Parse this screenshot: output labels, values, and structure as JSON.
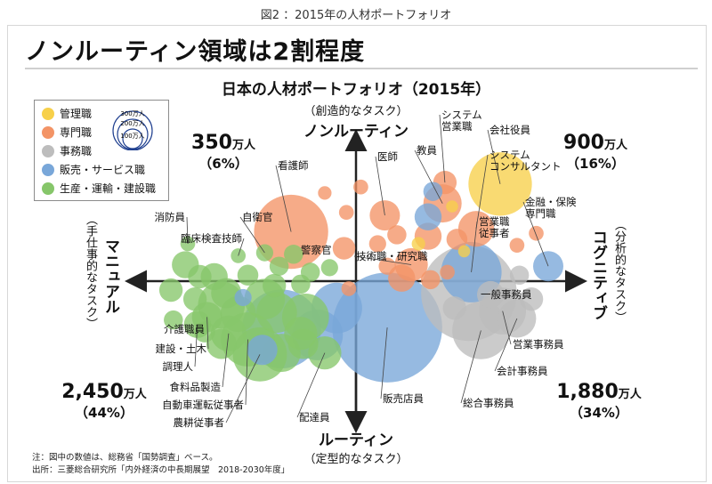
{
  "caption": "図2 ：2015年の人材ポートフォリオ",
  "headline": "ノンルーティン領域は2割程度",
  "subtitle": "日本の人材ポートフォリオ（2015年）",
  "legend": {
    "items": [
      {
        "label": "管理職",
        "color": "#f7d04a"
      },
      {
        "label": "専門職",
        "color": "#f39466"
      },
      {
        "label": "事務職",
        "color": "#bdbdbd"
      },
      {
        "label": "販売・サービス職",
        "color": "#79a7d9"
      },
      {
        "label": "生産・運輸・建設職",
        "color": "#86c66a"
      }
    ],
    "size_keys": [
      "300万人",
      "200万人",
      "100万人"
    ]
  },
  "axes": {
    "top_sub": "（創造的なタスク）",
    "top_main": "ノンルーティン",
    "bottom_main": "ルーティン",
    "bottom_sub": "（定型的なタスク）",
    "left_main": "マニュアル",
    "left_sub": "（手仕事的なタスク）",
    "right_main": "コグニティブ",
    "right_sub": "（分析的なタスク）"
  },
  "quadrants": {
    "top_left": {
      "value": "350",
      "unit": "万人",
      "pct": "（6%）"
    },
    "top_right": {
      "value": "900",
      "unit": "万人",
      "pct": "（16%）"
    },
    "bottom_left": {
      "value": "2,450",
      "unit": "万人",
      "pct": "（44%）"
    },
    "bottom_right": {
      "value": "1,880",
      "unit": "万人",
      "pct": "（34%）"
    }
  },
  "notes": {
    "line1": "注：図中の数値は、総務省「国勢調査」ベース。",
    "line2": "出所：三菱総合研究所「内外経済の中長期展望　2018-2030年度」"
  },
  "chart_data": {
    "type": "scatter",
    "title": "日本の人材ポートフォリオ（2015年）",
    "xlabel": "マニュアル ← → コグニティブ",
    "ylabel": "ルーティン ← → ノンルーティン",
    "xlim": [
      -10,
      10
    ],
    "ylim": [
      -10,
      10
    ],
    "size_unit": "万人",
    "categories": [
      "管理職",
      "専門職",
      "事務職",
      "販売・サービス職",
      "生産・運輸・建設職"
    ],
    "points": [
      {
        "label": "会社役員",
        "category": "管理職",
        "x": 6.0,
        "y": 6.5,
        "size": 110
      },
      {
        "label": "",
        "category": "管理職",
        "x": 2.6,
        "y": 2.5,
        "size": 5
      },
      {
        "label": "",
        "category": "管理職",
        "x": 4.5,
        "y": 2.0,
        "size": 4
      },
      {
        "label": "",
        "category": "管理職",
        "x": 4.0,
        "y": 5.0,
        "size": 4
      },
      {
        "label": "システム営業職",
        "category": "専門職",
        "x": 3.7,
        "y": 6.6,
        "size": 15
      },
      {
        "label": "教員",
        "category": "専門職",
        "x": 3.6,
        "y": 5.2,
        "size": 40
      },
      {
        "label": "医師",
        "category": "専門職",
        "x": 1.2,
        "y": 4.4,
        "size": 25
      },
      {
        "label": "システムコンサルタント",
        "category": "専門職",
        "x": 5.0,
        "y": 3.5,
        "size": 35
      },
      {
        "label": "看護師",
        "category": "専門職",
        "x": -2.7,
        "y": 3.3,
        "size": 150
      },
      {
        "label": "技術職・研究職",
        "category": "専門職",
        "x": 2.3,
        "y": 1.1,
        "size": 30
      },
      {
        "label": "",
        "category": "専門職",
        "x": 0.2,
        "y": 6.3,
        "size": 6
      },
      {
        "label": "",
        "category": "専門職",
        "x": -1.3,
        "y": 5.9,
        "size": 5
      },
      {
        "label": "",
        "category": "専門職",
        "x": -0.4,
        "y": 4.6,
        "size": 6
      },
      {
        "label": "",
        "category": "専門職",
        "x": -0.5,
        "y": 2.2,
        "size": 14
      },
      {
        "label": "",
        "category": "専門職",
        "x": 0.9,
        "y": 2.5,
        "size": 8
      },
      {
        "label": "",
        "category": "専門職",
        "x": 1.7,
        "y": 3.1,
        "size": 10
      },
      {
        "label": "",
        "category": "専門職",
        "x": 3.0,
        "y": 3.0,
        "size": 20
      },
      {
        "label": "",
        "category": "専門職",
        "x": 4.2,
        "y": 2.8,
        "size": 12
      },
      {
        "label": "",
        "category": "専門職",
        "x": 1.9,
        "y": 0.2,
        "size": 20
      },
      {
        "label": "",
        "category": "専門職",
        "x": 3.1,
        "y": 0.1,
        "size": 10
      },
      {
        "label": "",
        "category": "専門職",
        "x": 6.7,
        "y": 2.4,
        "size": 6
      },
      {
        "label": "",
        "category": "専門職",
        "x": 7.5,
        "y": 3.2,
        "size": 6
      },
      {
        "label": "",
        "category": "専門職",
        "x": 3.8,
        "y": 0.6,
        "size": 6
      },
      {
        "label": "",
        "category": "専門職",
        "x": 1.3,
        "y": 1.0,
        "size": 8
      },
      {
        "label": "",
        "category": "専門職",
        "x": -0.3,
        "y": -0.5,
        "size": 6
      },
      {
        "label": "営業職従事者",
        "category": "販売・サービス職",
        "x": 4.8,
        "y": 0.6,
        "size": 100
      },
      {
        "label": "金融・保険専門職",
        "category": "販売・サービス職",
        "x": 8.0,
        "y": 1.0,
        "size": 25
      },
      {
        "label": "",
        "category": "販売・サービス職",
        "x": 3.2,
        "y": 6.0,
        "size": 10
      },
      {
        "label": "",
        "category": "販売・サービス職",
        "x": 3.0,
        "y": 4.3,
        "size": 20
      },
      {
        "label": "販売店員",
        "category": "販売・サービス職",
        "x": 1.3,
        "y": -3.1,
        "size": 330
      },
      {
        "label": "",
        "category": "販売・サービス職",
        "x": -0.8,
        "y": -1.8,
        "size": 70
      },
      {
        "label": "",
        "category": "販売・サービス職",
        "x": -3.1,
        "y": -3.2,
        "size": 170
      },
      {
        "label": "",
        "category": "販売・サービス職",
        "x": -1.6,
        "y": -3.6,
        "size": 70
      },
      {
        "label": "",
        "category": "販売・サービス職",
        "x": -3.9,
        "y": -4.6,
        "size": 25
      },
      {
        "label": "",
        "category": "販売・サービス職",
        "x": -4.7,
        "y": -1.1,
        "size": 8
      },
      {
        "label": "一般事務員",
        "category": "事務職",
        "x": 4.7,
        "y": -0.8,
        "size": 250
      },
      {
        "label": "営業事務員",
        "category": "事務職",
        "x": 6.1,
        "y": -2.0,
        "size": 60
      },
      {
        "label": "会計事務員",
        "category": "事務職",
        "x": 6.7,
        "y": -2.5,
        "size": 40
      },
      {
        "label": "総合事務員",
        "category": "事務職",
        "x": 5.2,
        "y": -3.3,
        "size": 90
      },
      {
        "label": "",
        "category": "事務職",
        "x": 5.6,
        "y": -0.9,
        "size": 20
      },
      {
        "label": "",
        "category": "事務職",
        "x": 7.3,
        "y": -1.2,
        "size": 15
      },
      {
        "label": "",
        "category": "事務職",
        "x": 4.1,
        "y": -1.8,
        "size": 15
      },
      {
        "label": "",
        "category": "事務職",
        "x": 6.8,
        "y": 0.4,
        "size": 10
      },
      {
        "label": "消防員",
        "category": "生産・運輸・建設職",
        "x": -7.0,
        "y": 2.5,
        "size": 6
      },
      {
        "label": "自衛官",
        "category": "生産・運輸・建設職",
        "x": -3.8,
        "y": 1.9,
        "size": 8
      },
      {
        "label": "警察官",
        "category": "生産・運輸・建設職",
        "x": -2.6,
        "y": 1.8,
        "size": 10
      },
      {
        "label": "臨床検査技師",
        "category": "生産・運輸・建設職",
        "x": -4.9,
        "y": 1.7,
        "size": 6
      },
      {
        "label": "介護職員",
        "category": "生産・運輸・建設職",
        "x": -5.6,
        "y": -1.6,
        "size": 60
      },
      {
        "label": "建設・土木",
        "category": "生産・運輸・建設職",
        "x": -6.2,
        "y": -2.4,
        "size": 25
      },
      {
        "label": "調理人",
        "category": "生産・運輸・建設職",
        "x": -6.6,
        "y": -2.9,
        "size": 20
      },
      {
        "label": "食料品製造",
        "category": "生産・運輸・建設職",
        "x": -5.3,
        "y": -3.5,
        "size": 35
      },
      {
        "label": "自動車運転従事者",
        "category": "生産・運輸・建設職",
        "x": -4.5,
        "y": -3.9,
        "size": 80
      },
      {
        "label": "農耕従事者",
        "category": "生産・運輸・建設職",
        "x": -4.0,
        "y": -4.9,
        "size": 80
      },
      {
        "label": "配達員",
        "category": "生産・運輸・建設職",
        "x": -1.3,
        "y": -4.8,
        "size": 30
      },
      {
        "label": "",
        "category": "生産・運輸・建設職",
        "x": -7.1,
        "y": 1.1,
        "size": 20
      },
      {
        "label": "",
        "category": "生産・運輸・建設職",
        "x": -6.5,
        "y": 0.3,
        "size": 15
      },
      {
        "label": "",
        "category": "生産・運輸・建設職",
        "x": -5.9,
        "y": 0.3,
        "size": 20
      },
      {
        "label": "",
        "category": "生産・運輸・建設職",
        "x": -3.2,
        "y": 1.0,
        "size": 10
      },
      {
        "label": "",
        "category": "生産・運輸・建設職",
        "x": -1.9,
        "y": 0.6,
        "size": 10
      },
      {
        "label": "",
        "category": "生産・運輸・建設職",
        "x": -1.1,
        "y": 0.9,
        "size": 8
      },
      {
        "label": "",
        "category": "生産・運輸・建設職",
        "x": -4.5,
        "y": 0.4,
        "size": 12
      },
      {
        "label": "",
        "category": "生産・運輸・建設職",
        "x": -3.4,
        "y": -0.3,
        "size": 15
      },
      {
        "label": "",
        "category": "生産・運輸・建設職",
        "x": -2.3,
        "y": -0.2,
        "size": 10
      },
      {
        "label": "",
        "category": "生産・運輸・建設職",
        "x": -5.4,
        "y": -0.8,
        "size": 25
      },
      {
        "label": "",
        "category": "生産・運輸・建設職",
        "x": -7.7,
        "y": -0.6,
        "size": 15
      },
      {
        "label": "",
        "category": "生産・運輸・建設職",
        "x": -6.7,
        "y": -1.2,
        "size": 15
      },
      {
        "label": "",
        "category": "生産・運輸・建設職",
        "x": -3.8,
        "y": -1.2,
        "size": 45
      },
      {
        "label": "",
        "category": "生産・運輸・建設職",
        "x": -2.1,
        "y": -2.4,
        "size": 60
      },
      {
        "label": "",
        "category": "生産・運輸・建設職",
        "x": -4.9,
        "y": -2.2,
        "size": 35
      },
      {
        "label": "",
        "category": "生産・運輸・建設職",
        "x": -3.3,
        "y": -2.1,
        "size": 45
      },
      {
        "label": "",
        "category": "生産・運輸・建設職",
        "x": -7.6,
        "y": -2.6,
        "size": 10
      },
      {
        "label": "",
        "category": "生産・運輸・建設職",
        "x": -2.3,
        "y": -3.5,
        "size": 30
      },
      {
        "label": "",
        "category": "生産・運輸・建設職",
        "x": -5.6,
        "y": -4.2,
        "size": 25
      },
      {
        "label": "",
        "category": "生産・運輸・建設職",
        "x": -2.2,
        "y": -4.2,
        "size": 25
      },
      {
        "label": "",
        "category": "生産・運輸・建設職",
        "x": -3.1,
        "y": -4.8,
        "size": 40
      },
      {
        "label": "",
        "category": "生産・運輸・建設職",
        "x": -6.3,
        "y": -3.4,
        "size": 12
      }
    ]
  }
}
